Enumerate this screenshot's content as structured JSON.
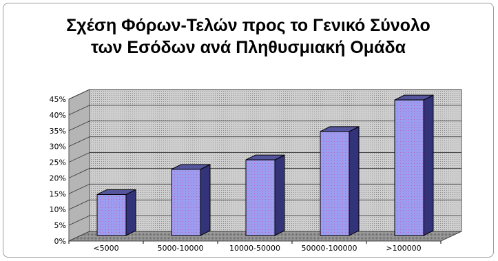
{
  "chart_data": {
    "type": "bar",
    "title": [
      "Σχέση Φόρων-Τελών προς το Γενικό Σύνολο",
      "των Εσόδων ανά Πληθυσμιακή Ομάδα"
    ],
    "categories": [
      "<5000",
      "5000-10000",
      "10000-50000",
      "50000-100000",
      ">100000"
    ],
    "values": [
      13,
      21,
      24,
      33,
      43
    ],
    "ylim": [
      0,
      45
    ],
    "yticks": [
      0,
      5,
      10,
      15,
      20,
      25,
      30,
      35,
      40,
      45
    ],
    "ytick_labels": [
      "0%",
      "5%",
      "10%",
      "15%",
      "20%",
      "25%",
      "30%",
      "35%",
      "40%",
      "45%"
    ],
    "grid": true,
    "colors": {
      "bar_front": "#9999ee",
      "bar_side": "#33337a",
      "bar_top": "#55559e",
      "wall": "#c8c8c8",
      "floor": "#8a8a8a"
    }
  }
}
